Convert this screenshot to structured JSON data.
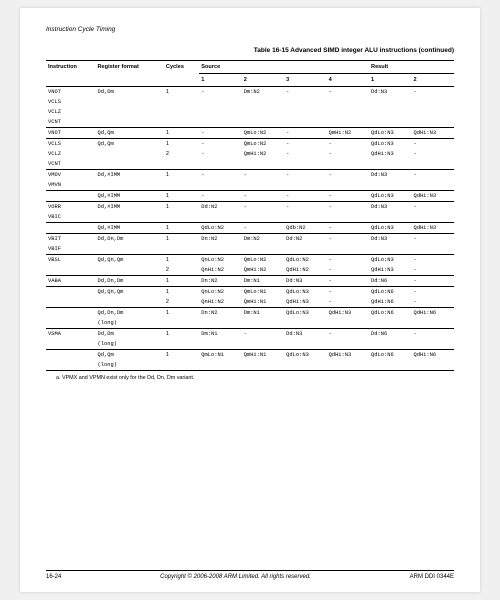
{
  "header": {
    "section_title": "Instruction Cycle Timing"
  },
  "caption": "Table 16-15 Advanced SIMD integer ALU instructions (continued)",
  "columns": {
    "instruction": "Instruction",
    "register_format": "Register format",
    "cycles": "Cycles",
    "source": "Source",
    "result": "Result",
    "c1": "1",
    "c2": "2",
    "c3": "3",
    "c4": "4",
    "r1": "1",
    "r2": "2"
  },
  "rows": [
    {
      "instr": "VNOT",
      "reg": "Dd,Dm",
      "cyc": "1",
      "s1": "-",
      "s2": "Dm:N2",
      "s3": "-",
      "s4": "-",
      "r1": "Dd:N3",
      "r2": "-"
    },
    {
      "instr": "VCLS",
      "reg": "",
      "cyc": "",
      "s1": "",
      "s2": "",
      "s3": "",
      "s4": "",
      "r1": "",
      "r2": ""
    },
    {
      "instr": "VCLZ",
      "reg": "",
      "cyc": "",
      "s1": "",
      "s2": "",
      "s3": "",
      "s4": "",
      "r1": "",
      "r2": ""
    },
    {
      "instr": "VCNT",
      "reg": "",
      "cyc": "",
      "s1": "",
      "s2": "",
      "s3": "",
      "s4": "",
      "r1": "",
      "r2": "",
      "sep": true
    },
    {
      "instr": "VNOT",
      "reg": "Qd,Qm",
      "cyc": "1",
      "s1": "-",
      "s2": "QmLo:N2",
      "s3": "-",
      "s4": "QmHi:N2",
      "r1": "QdLo:N3",
      "r2": "QdHi:N3",
      "sep": true
    },
    {
      "instr": "VCLS",
      "reg": "Qd,Qm",
      "cyc": "1",
      "s1": "-",
      "s2": "QmLo:N2",
      "s3": "-",
      "s4": "-",
      "r1": "QdLo:N3",
      "r2": "-"
    },
    {
      "instr": "VCLZ",
      "reg": "",
      "cyc": "2",
      "s1": "-",
      "s2": "QmHi:N2",
      "s3": "-",
      "s4": "-",
      "r1": "QdHi:N3",
      "r2": "-"
    },
    {
      "instr": "VCNT",
      "reg": "",
      "cyc": "",
      "s1": "",
      "s2": "",
      "s3": "",
      "s4": "",
      "r1": "",
      "r2": "",
      "sep": true
    },
    {
      "instr": "VMOV",
      "reg": "Dd,#IMM",
      "cyc": "1",
      "s1": "-",
      "s2": "-",
      "s3": "-",
      "s4": "-",
      "r1": "Dd:N3",
      "r2": "-"
    },
    {
      "instr": "VMVN",
      "reg": "",
      "cyc": "",
      "s1": "",
      "s2": "",
      "s3": "",
      "s4": "",
      "r1": "",
      "r2": "",
      "subsep": true
    },
    {
      "instr": "",
      "reg": "Qd,#IMM",
      "cyc": "1",
      "s1": "-",
      "s2": "-",
      "s3": "-",
      "s4": "-",
      "r1": "QdLo:N3",
      "r2": "QdHi:N3",
      "sep": true
    },
    {
      "instr": "VORR",
      "reg": "Dd,#IMM",
      "cyc": "1",
      "s1": "Dd:N2",
      "s2": "-",
      "s3": "-",
      "s4": "-",
      "r1": "Dd:N3",
      "r2": "-"
    },
    {
      "instr": "VBIC",
      "reg": "",
      "cyc": "",
      "s1": "",
      "s2": "",
      "s3": "",
      "s4": "",
      "r1": "",
      "r2": "",
      "subsep": true
    },
    {
      "instr": "",
      "reg": "Qd,#IMM",
      "cyc": "1",
      "s1": "QdLo:N2",
      "s2": "-",
      "s3": "Qdb:N2",
      "s4": "-",
      "r1": "QdLo:N3",
      "r2": "QdHi:N3",
      "sep": true
    },
    {
      "instr": "VBIT",
      "reg": "Dd,Dn,Dm",
      "cyc": "1",
      "s1": "Dn:N2",
      "s2": "Dm:N2",
      "s3": "Dd:N2",
      "s4": "-",
      "r1": "Dd:N3",
      "r2": "-"
    },
    {
      "instr": "VBIF",
      "reg": "",
      "cyc": "",
      "s1": "",
      "s2": "",
      "s3": "",
      "s4": "",
      "r1": "",
      "r2": "",
      "subsep": true
    },
    {
      "instr": "VBSL",
      "reg": "Qd,Qn,Qm",
      "cyc": "1",
      "s1": "QnLo:N2",
      "s2": "QmLo:N2",
      "s3": "QdLo:N2",
      "s4": "-",
      "r1": "QdLo:N3",
      "r2": "-"
    },
    {
      "instr": "",
      "reg": "",
      "cyc": "2",
      "s1": "QnHi:N2",
      "s2": "QmHi:N2",
      "s3": "QdHi:N2",
      "s4": "-",
      "r1": "QdHi:N3",
      "r2": "-",
      "sep": true
    },
    {
      "instr": "VABA",
      "reg": "Dd,Dn,Dm",
      "cyc": "1",
      "s1": "Dn:N2",
      "s2": "Dm:N1",
      "s3": "Dd:N3",
      "s4": "-",
      "r1": "Dd:N6",
      "r2": "-",
      "subsep": true
    },
    {
      "instr": "",
      "reg": "Qd,Qn,Qm",
      "cyc": "1",
      "s1": "QnLo:N2",
      "s2": "QmLo:N1",
      "s3": "QdLo:N3",
      "s4": "-",
      "r1": "QdLo:N6",
      "r2": "-"
    },
    {
      "instr": "",
      "reg": "",
      "cyc": "2",
      "s1": "QnHi:N2",
      "s2": "QmHi:N1",
      "s3": "QdHi:N3",
      "s4": "-",
      "r1": "QdHi:N6",
      "r2": "-",
      "subsep": true
    },
    {
      "instr": "",
      "reg": "Qd,Dn,Dm",
      "cyc": "1",
      "s1": "Dn:N2",
      "s2": "Dm:N1",
      "s3": "QdLo:N3",
      "s4": "QdHi:N3",
      "r1": "QdLo:N6",
      "r2": "QdHi:N6"
    },
    {
      "instr": "",
      "reg": "(long)",
      "cyc": "",
      "s1": "",
      "s2": "",
      "s3": "",
      "s4": "",
      "r1": "",
      "r2": "",
      "sep": true
    },
    {
      "instr": "VSMA",
      "reg": "Dd,Dm",
      "cyc": "1",
      "s1": "Dm:N1",
      "s2": "-",
      "s3": "Dd:N3",
      "s4": "-",
      "r1": "Dd:N6",
      "r2": "-"
    },
    {
      "instr": "",
      "reg": "(long)",
      "cyc": "",
      "s1": "",
      "s2": "",
      "s3": "",
      "s4": "",
      "r1": "",
      "r2": "",
      "subsep": true
    },
    {
      "instr": "",
      "reg": "Qd,Qm",
      "cyc": "1",
      "s1": "QmLo:N1",
      "s2": "QmHi:N1",
      "s3": "QdLo:N3",
      "s4": "QdHi:N3",
      "r1": "QdLo:N6",
      "r2": "QdHi:N6"
    },
    {
      "instr": "",
      "reg": "(long)",
      "cyc": "",
      "s1": "",
      "s2": "",
      "s3": "",
      "s4": "",
      "r1": "",
      "r2": "",
      "lastsep": true
    }
  ],
  "footnote": "a.  VPMX and VPMN exist only for the Dd, Dn, Dm variant.",
  "footer": {
    "left": "16-24",
    "center": "Copyright © 2006-2008 ARM Limited. All rights reserved.",
    "right": "ARM DDI 0344E"
  }
}
